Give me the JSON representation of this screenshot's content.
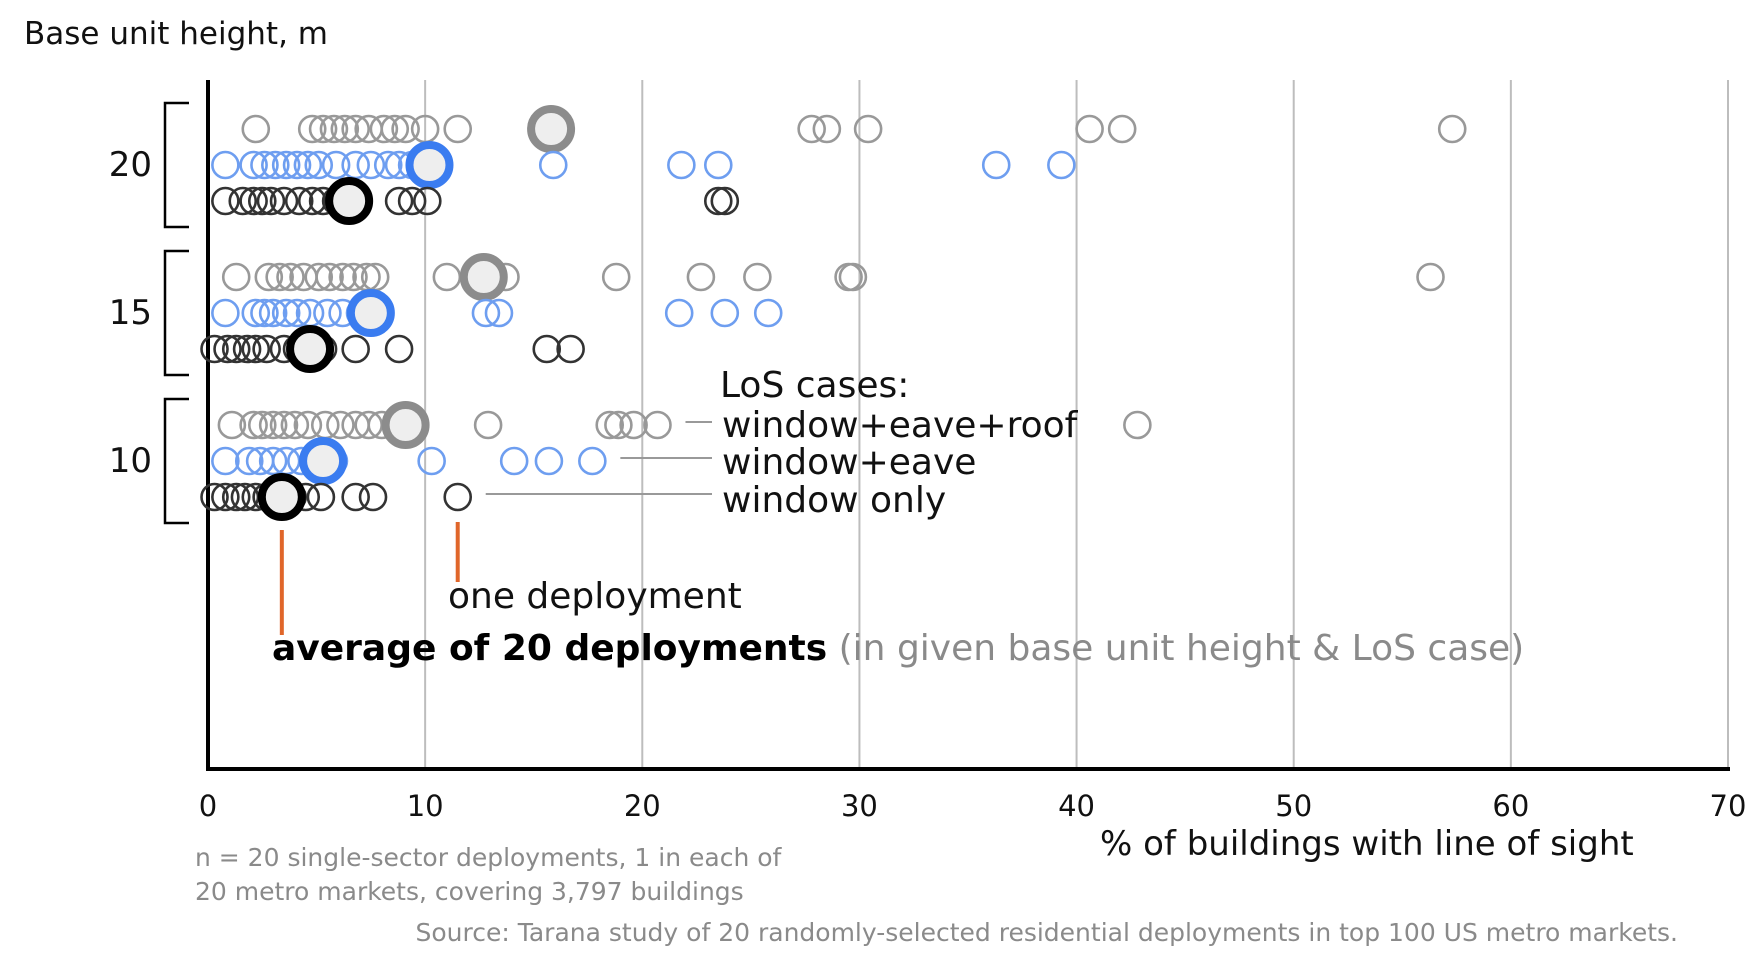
{
  "chart_data": {
    "type": "scatter",
    "ylabel": "Base unit height, m",
    "xlabel": "% of buildings with line of sight",
    "xlim": [
      0,
      70
    ],
    "x_ticks": [
      "0",
      "10",
      "20",
      "30",
      "40",
      "50",
      "60",
      "70"
    ],
    "groups": [
      {
        "label": "20",
        "series": [
          {
            "name": "window+eave+roof",
            "color": "#999999",
            "points": [
              2.2,
              4.8,
              5.3,
              5.8,
              6.3,
              6.8,
              7.4,
              8.1,
              8.6,
              9.1,
              10.0,
              11.5,
              27.8,
              28.5,
              30.4,
              40.6,
              42.1,
              57.3
            ],
            "average": 15.8
          },
          {
            "name": "window+eave",
            "color": "#6e9ef0",
            "points": [
              0.8,
              2.1,
              2.6,
              3.1,
              3.6,
              4.1,
              4.6,
              5.1,
              5.9,
              6.8,
              7.5,
              8.3,
              8.8,
              9.4,
              15.9,
              21.8,
              23.5,
              36.3,
              39.3
            ],
            "average": 10.2
          },
          {
            "name": "window only",
            "color": "#333333",
            "points": [
              0.8,
              1.6,
              2.1,
              2.5,
              2.9,
              3.5,
              4.2,
              4.8,
              5.3,
              5.9,
              6.9,
              8.8,
              9.4,
              10.1,
              23.5,
              23.8
            ],
            "average": 6.5
          }
        ]
      },
      {
        "label": "15",
        "series": [
          {
            "name": "window+eave+roof",
            "color": "#999999",
            "points": [
              1.3,
              2.8,
              3.3,
              3.8,
              4.4,
              5.1,
              5.6,
              6.2,
              6.7,
              7.3,
              7.7,
              11.0,
              13.7,
              18.8,
              22.7,
              25.3,
              29.5,
              29.7,
              56.3
            ],
            "average": 12.7
          },
          {
            "name": "window+eave",
            "color": "#6e9ef0",
            "points": [
              0.8,
              2.2,
              2.6,
              3.0,
              3.6,
              4.1,
              4.7,
              5.5,
              6.2,
              7.0,
              7.7,
              12.8,
              13.4,
              21.7,
              23.8,
              25.8
            ],
            "average": 7.5
          },
          {
            "name": "window only",
            "color": "#333333",
            "points": [
              0.3,
              0.9,
              1.3,
              1.8,
              2.2,
              2.7,
              3.5,
              4.1,
              4.7,
              5.3,
              6.8,
              8.8,
              15.6,
              16.7
            ],
            "average": 4.7
          }
        ]
      },
      {
        "label": "10",
        "series": [
          {
            "name": "window+eave+roof",
            "color": "#999999",
            "points": [
              1.1,
              2.1,
              2.5,
              3.0,
              3.5,
              4.0,
              4.6,
              5.4,
              6.1,
              6.8,
              7.4,
              8.0,
              12.9,
              18.5,
              18.9,
              19.6,
              20.7,
              42.8
            ],
            "average": 9.1
          },
          {
            "name": "window+eave",
            "color": "#6e9ef0",
            "points": [
              0.8,
              1.9,
              2.4,
              3.0,
              3.6,
              4.3,
              5.0,
              5.8,
              10.3,
              14.1,
              15.7,
              17.7
            ],
            "average": 5.3
          },
          {
            "name": "window only",
            "color": "#333333",
            "points": [
              0.3,
              0.8,
              1.3,
              1.7,
              2.2,
              2.7,
              3.2,
              3.9,
              4.5,
              5.2,
              6.8,
              7.6,
              11.5
            ],
            "average": 3.4
          }
        ]
      }
    ],
    "grid": "vertical"
  },
  "annotations": {
    "los_cases_title": "LoS cases:",
    "case_labels": [
      "window+eave+roof",
      "window+eave",
      "window only"
    ],
    "one_deployment": "one deployment",
    "average_bold": "average of 20 deployments",
    "average_rest": " (in given base unit height & LoS case)",
    "one_deployment_x": 11.5,
    "average_x": 3.4
  },
  "footnote": {
    "line1": "n = 20 single-sector deployments, 1 in each of",
    "line2": "20 metro markets, covering 3,797 buildings"
  },
  "source": "Source:  Tarana study of 20 randomly-selected residential deployments in top 100 US metro markets.",
  "colors": {
    "accent_orange": "#e0662a",
    "grid": "#bdbdbd",
    "axis": "#000000"
  }
}
